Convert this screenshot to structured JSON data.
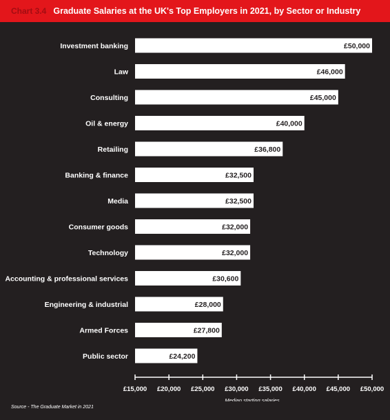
{
  "header": {
    "chart_number": "Chart 3.4",
    "title": "Graduate Salaries at the UK's Top Employers in 2021, by Sector or Industry"
  },
  "footer": {
    "source": "Source - The Graduate Market in 2021"
  },
  "colors": {
    "background": "#231f20",
    "header": "#e3161b",
    "bar": "#ffffff",
    "text": "#ffffff",
    "bar_label": "#231f20"
  },
  "chart_data": {
    "type": "bar",
    "orientation": "horizontal",
    "title": "Graduate Salaries at the UK's Top Employers in 2021, by Sector or Industry",
    "xlabel": "Median starting salaries",
    "ylabel": "",
    "xlim": [
      15000,
      50000
    ],
    "ticks": [
      15000,
      20000,
      25000,
      30000,
      35000,
      40000,
      45000,
      50000
    ],
    "tick_labels": [
      "£15,000",
      "£20,000",
      "£25,000",
      "£30,000",
      "£35,000",
      "£40,000",
      "£45,000",
      "£50,000"
    ],
    "grid": false,
    "categories": [
      "Investment banking",
      "Law",
      "Consulting",
      "Oil & energy",
      "Retailing",
      "Banking & finance",
      "Media",
      "Consumer goods",
      "Technology",
      "Accounting & professional services",
      "Engineering & industrial",
      "Armed Forces",
      "Public sector"
    ],
    "values": [
      50000,
      46000,
      45000,
      40000,
      36800,
      32500,
      32500,
      32000,
      32000,
      30600,
      28000,
      27800,
      24200
    ],
    "value_labels": [
      "£50,000",
      "£46,000",
      "£45,000",
      "£40,000",
      "£36,800",
      "£32,500",
      "£32,500",
      "£32,000",
      "£32,000",
      "£30,600",
      "£28,000",
      "£27,800",
      "£24,200"
    ]
  }
}
